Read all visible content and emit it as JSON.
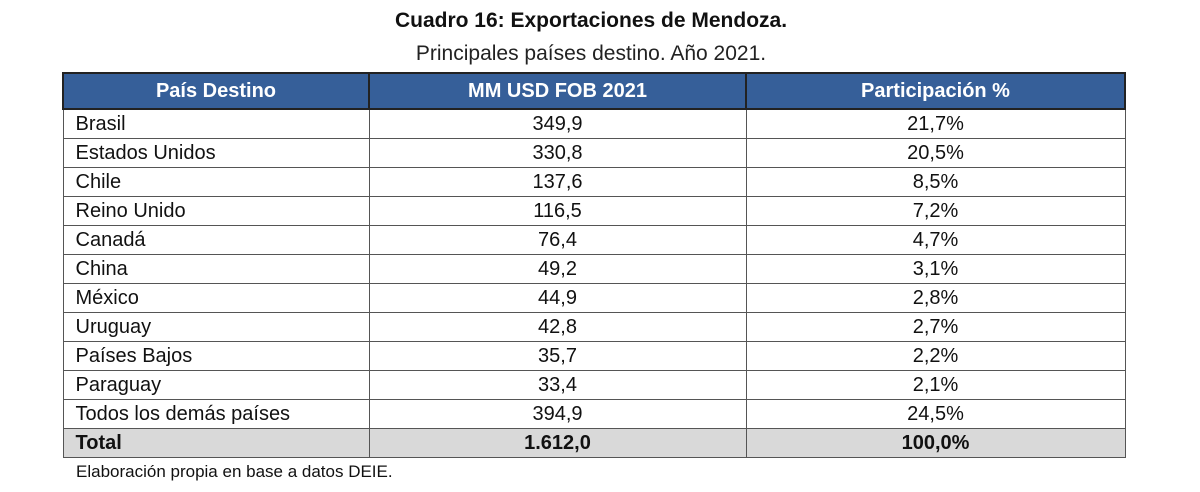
{
  "header": {
    "title": "Cuadro 16: Exportaciones de Mendoza.",
    "subtitle": "Principales países destino. Año 2021."
  },
  "table": {
    "columns": [
      "País Destino",
      "MM USD FOB 2021",
      "Participación %"
    ],
    "rows": [
      [
        "Brasil",
        "349,9",
        "21,7%"
      ],
      [
        "Estados Unidos",
        "330,8",
        "20,5%"
      ],
      [
        "Chile",
        "137,6",
        "8,5%"
      ],
      [
        "Reino Unido",
        "116,5",
        "7,2%"
      ],
      [
        "Canadá",
        "76,4",
        "4,7%"
      ],
      [
        "China",
        "49,2",
        "3,1%"
      ],
      [
        "México",
        "44,9",
        "2,8%"
      ],
      [
        "Uruguay",
        "42,8",
        "2,7%"
      ],
      [
        "Países Bajos",
        "35,7",
        "2,2%"
      ],
      [
        "Paraguay",
        "33,4",
        "2,1%"
      ],
      [
        "Todos los demás países",
        "394,9",
        "24,5%"
      ]
    ],
    "total": [
      "Total",
      "1.612,0",
      "100,0%"
    ]
  },
  "footnote": "Elaboración propia en base a datos DEIE."
}
